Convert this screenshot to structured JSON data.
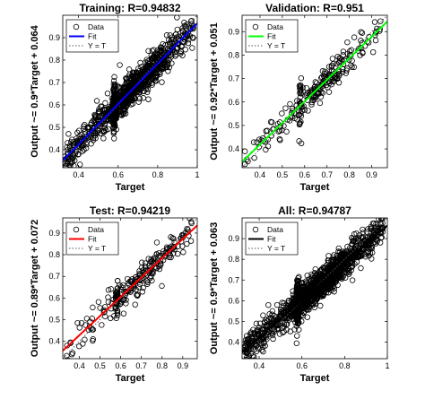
{
  "chart_data": [
    {
      "type": "scatter",
      "title": "Training: R=0.94832",
      "xlabel": "Target",
      "ylabel": "Output ~= 0.9*Target + 0.064",
      "xlim": [
        0.32,
        1.0
      ],
      "ylim": [
        0.32,
        1.0
      ],
      "xticks": [
        "0.4",
        "0.6",
        "0.8",
        "1"
      ],
      "yticks": [
        "0.4",
        "0.5",
        "0.6",
        "0.7",
        "0.8",
        "0.9"
      ],
      "fit": {
        "slope": 0.9,
        "intercept": 0.064,
        "color": "#0000ff"
      },
      "legend": [
        "Data",
        "Fit",
        "Y = T"
      ],
      "legend_position": "top-left",
      "n_points_approx": 1100,
      "point_density": "dense",
      "noise_std": 0.035,
      "vertical_cluster_x": 0.58
    },
    {
      "type": "scatter",
      "title": "Validation: R=0.951",
      "xlabel": "Target",
      "ylabel": "Output ~= 0.92*Target + 0.051",
      "xlim": [
        0.32,
        0.97
      ],
      "ylim": [
        0.32,
        0.97
      ],
      "xticks": [
        "0.4",
        "0.5",
        "0.6",
        "0.7",
        "0.8",
        "0.9"
      ],
      "yticks": [
        "0.4",
        "0.5",
        "0.6",
        "0.7",
        "0.8",
        "0.9"
      ],
      "fit": {
        "slope": 0.92,
        "intercept": 0.051,
        "color": "#00ff00"
      },
      "legend": [
        "Data",
        "Fit",
        "Y = T"
      ],
      "legend_position": "top-left",
      "n_points_approx": 240,
      "point_density": "sparse",
      "noise_std": 0.032,
      "vertical_cluster_x": 0.58
    },
    {
      "type": "scatter",
      "title": "Test: R=0.94219",
      "xlabel": "Target",
      "ylabel": "Output ~= 0.89*Target + 0.072",
      "xlim": [
        0.32,
        0.97
      ],
      "ylim": [
        0.32,
        0.97
      ],
      "xticks": [
        "0.4",
        "0.5",
        "0.6",
        "0.7",
        "0.8",
        "0.9"
      ],
      "yticks": [
        "0.4",
        "0.5",
        "0.6",
        "0.7",
        "0.8",
        "0.9"
      ],
      "fit": {
        "slope": 0.89,
        "intercept": 0.072,
        "color": "#ff0000"
      },
      "legend": [
        "Data",
        "Fit",
        "Y = T"
      ],
      "legend_position": "top-left",
      "n_points_approx": 240,
      "point_density": "sparse",
      "noise_std": 0.036,
      "vertical_cluster_x": 0.58
    },
    {
      "type": "scatter",
      "title": "All: R=0.94787",
      "xlabel": "Target",
      "ylabel": "Output ~= 0.9*Target + 0.063",
      "xlim": [
        0.32,
        1.0
      ],
      "ylim": [
        0.32,
        1.0
      ],
      "xticks": [
        "0.4",
        "0.6",
        "0.8",
        "1"
      ],
      "yticks": [
        "0.4",
        "0.5",
        "0.6",
        "0.7",
        "0.8",
        "0.9"
      ],
      "fit": {
        "slope": 0.9,
        "intercept": 0.063,
        "color": "#000000"
      },
      "legend": [
        "Data",
        "Fit",
        "Y = T"
      ],
      "legend_position": "top-left",
      "n_points_approx": 1580,
      "point_density": "dense",
      "noise_std": 0.035,
      "vertical_cluster_x": 0.58
    }
  ]
}
